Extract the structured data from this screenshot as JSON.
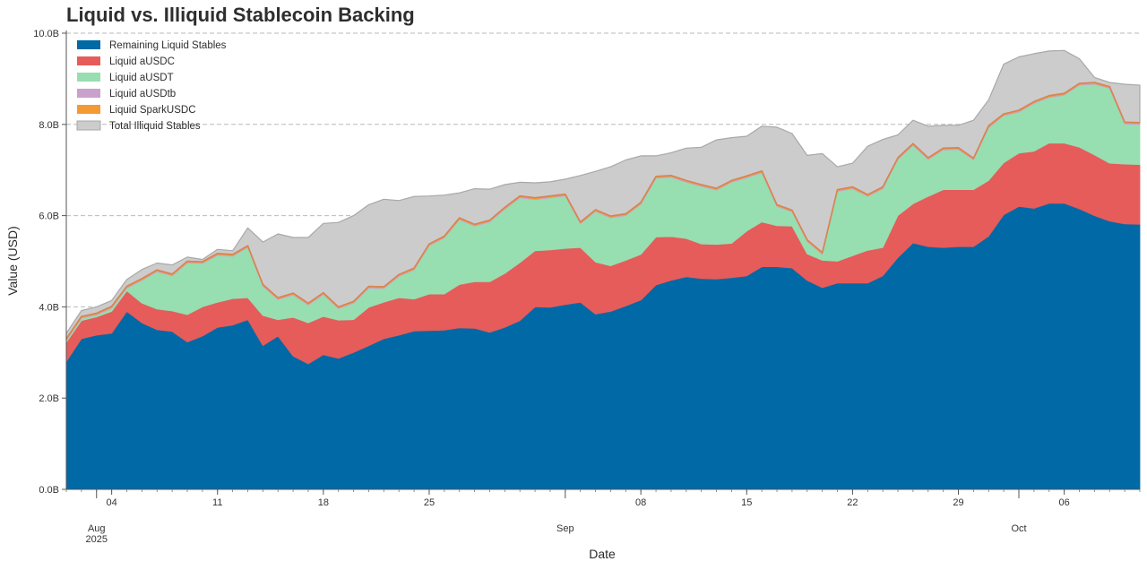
{
  "chart_data": {
    "type": "area",
    "stacked": true,
    "title": "Liquid vs. Illiquid Stablecoin Backing",
    "xlabel": "Date",
    "ylabel": "Value (USD)",
    "ylim": [
      0,
      10
    ],
    "y_unit": "B",
    "y_ticks": [
      "0.0B",
      "2.0B",
      "4.0B",
      "6.0B",
      "8.0B",
      "10.0B"
    ],
    "x_ticks": [
      {
        "day": 3,
        "label": "04"
      },
      {
        "day": 10,
        "label": "11"
      },
      {
        "day": 17,
        "label": "18"
      },
      {
        "day": 24,
        "label": "25"
      },
      {
        "day": 38,
        "label": "08"
      },
      {
        "day": 45,
        "label": "15"
      },
      {
        "day": 52,
        "label": "22"
      },
      {
        "day": 59,
        "label": "29"
      },
      {
        "day": 66,
        "label": "06"
      }
    ],
    "month_labels": [
      {
        "day": 2,
        "label": "Aug",
        "sub": "2025"
      },
      {
        "day": 33,
        "label": "Sep",
        "sub": ""
      },
      {
        "day": 63,
        "label": "Oct",
        "sub": ""
      }
    ],
    "grid": "y-dashed",
    "legend_position": "top-left",
    "x_start": "2025-08-01",
    "x_end": "2025-10-09",
    "series": [
      {
        "name": "Remaining Liquid Stables",
        "color": "#0069a6",
        "values": [
          2.8,
          3.3,
          3.38,
          3.42,
          3.9,
          3.65,
          3.5,
          3.46,
          3.23,
          3.36,
          3.55,
          3.6,
          3.72,
          3.15,
          3.36,
          2.92,
          2.75,
          2.95,
          2.87,
          3.0,
          3.15,
          3.3,
          3.38,
          3.47,
          3.48,
          3.49,
          3.54,
          3.53,
          3.44,
          3.55,
          3.7,
          4.0,
          3.99,
          4.05,
          4.1,
          3.84,
          3.9,
          4.02,
          4.15,
          4.48,
          4.58,
          4.66,
          4.62,
          4.61,
          4.64,
          4.68,
          4.88,
          4.88,
          4.85,
          4.58,
          4.42,
          4.52,
          4.52,
          4.52,
          4.68,
          5.08,
          5.4,
          5.32,
          5.3,
          5.32,
          5.32,
          5.55,
          6.02,
          6.2,
          6.16,
          6.27,
          6.27,
          6.15,
          6.0,
          5.88,
          5.82,
          5.81
        ]
      },
      {
        "name": "Liquid aUSDC",
        "color": "#e55c5a",
        "values": [
          0.42,
          0.4,
          0.4,
          0.48,
          0.45,
          0.43,
          0.45,
          0.45,
          0.6,
          0.64,
          0.55,
          0.58,
          0.48,
          0.66,
          0.36,
          0.85,
          0.9,
          0.84,
          0.84,
          0.72,
          0.84,
          0.8,
          0.82,
          0.7,
          0.8,
          0.79,
          0.95,
          1.02,
          1.11,
          1.18,
          1.27,
          1.23,
          1.26,
          1.23,
          1.2,
          1.14,
          1.0,
          1.0,
          1.0,
          1.05,
          0.96,
          0.84,
          0.76,
          0.76,
          0.75,
          0.98,
          0.98,
          0.9,
          0.92,
          0.58,
          0.6,
          0.48,
          0.6,
          0.72,
          0.62,
          0.92,
          0.86,
          1.1,
          1.27,
          1.25,
          1.25,
          1.22,
          1.14,
          1.17,
          1.25,
          1.32,
          1.32,
          1.35,
          1.33,
          1.27,
          1.31,
          1.31
        ]
      },
      {
        "name": "Liquid aUSDT",
        "color": "#97deb0",
        "values": [
          0.04,
          0.05,
          0.04,
          0.07,
          0.06,
          0.5,
          0.82,
          0.77,
          1.13,
          0.95,
          1.03,
          0.93,
          1.1,
          0.64,
          0.44,
          0.49,
          0.39,
          0.48,
          0.25,
          0.36,
          0.42,
          0.3,
          0.47,
          0.64,
          1.06,
          1.23,
          1.42,
          1.22,
          1.31,
          1.41,
          1.42,
          1.12,
          1.14,
          1.15,
          0.52,
          1.11,
          1.05,
          0.98,
          1.1,
          1.29,
          1.3,
          1.23,
          1.26,
          1.19,
          1.34,
          1.17,
          1.08,
          0.42,
          0.31,
          0.27,
          0.13,
          1.53,
          1.47,
          1.18,
          1.29,
          1.23,
          1.28,
          0.81,
          0.87,
          0.88,
          0.65,
          1.16,
          1.03,
          0.9,
          1.05,
          1.0,
          1.05,
          1.36,
          1.55,
          1.64,
          0.88,
          0.88
        ]
      },
      {
        "name": "Liquid aUSDtb",
        "color": "#caa0cc",
        "values": [
          0.02,
          0.02,
          0.02,
          0.02,
          0.02,
          0.02,
          0.02,
          0.02,
          0.02,
          0.02,
          0.02,
          0.02,
          0.02,
          0.02,
          0.02,
          0.02,
          0.02,
          0.02,
          0.02,
          0.02,
          0.02,
          0.02,
          0.02,
          0.02,
          0.02,
          0.02,
          0.02,
          0.02,
          0.02,
          0.02,
          0.02,
          0.02,
          0.02,
          0.02,
          0.02,
          0.02,
          0.02,
          0.02,
          0.02,
          0.02,
          0.02,
          0.02,
          0.02,
          0.02,
          0.02,
          0.02,
          0.02,
          0.02,
          0.02,
          0.02,
          0.02,
          0.02,
          0.02,
          0.02,
          0.02,
          0.02,
          0.02,
          0.02,
          0.02,
          0.02,
          0.02,
          0.02,
          0.02,
          0.02,
          0.02,
          0.02,
          0.02,
          0.02,
          0.02,
          0.02,
          0.02,
          0.02
        ]
      },
      {
        "name": "Liquid SparkUSDC",
        "color": "#f59a32",
        "values": [
          0.02,
          0.02,
          0.02,
          0.02,
          0.02,
          0.02,
          0.02,
          0.02,
          0.02,
          0.02,
          0.02,
          0.02,
          0.02,
          0.02,
          0.02,
          0.02,
          0.02,
          0.02,
          0.02,
          0.02,
          0.02,
          0.02,
          0.02,
          0.02,
          0.02,
          0.02,
          0.02,
          0.02,
          0.02,
          0.02,
          0.02,
          0.02,
          0.02,
          0.02,
          0.02,
          0.02,
          0.02,
          0.02,
          0.02,
          0.02,
          0.02,
          0.02,
          0.02,
          0.02,
          0.02,
          0.02,
          0.02,
          0.02,
          0.02,
          0.02,
          0.02,
          0.02,
          0.02,
          0.02,
          0.02,
          0.02,
          0.02,
          0.02,
          0.02,
          0.02,
          0.02,
          0.02,
          0.02,
          0.02,
          0.02,
          0.02,
          0.02,
          0.02,
          0.02,
          0.02,
          0.02,
          0.02
        ]
      },
      {
        "name": "Total Illiquid Stables",
        "color": "#cccccc",
        "values": [
          0.12,
          0.13,
          0.14,
          0.13,
          0.15,
          0.2,
          0.15,
          0.2,
          0.09,
          0.05,
          0.09,
          0.08,
          0.39,
          0.93,
          1.4,
          1.22,
          1.44,
          1.52,
          1.85,
          1.88,
          1.79,
          1.92,
          1.62,
          1.57,
          1.05,
          0.9,
          0.55,
          0.78,
          0.68,
          0.5,
          0.3,
          0.33,
          0.31,
          0.33,
          1.02,
          0.84,
          1.08,
          1.18,
          1.02,
          0.45,
          0.5,
          0.71,
          0.82,
          1.06,
          0.94,
          0.87,
          0.98,
          1.7,
          1.68,
          1.85,
          2.17,
          0.5,
          0.52,
          1.06,
          1.04,
          0.5,
          0.51,
          0.69,
          0.5,
          0.49,
          0.83,
          0.57,
          1.09,
          1.17,
          1.05,
          0.98,
          0.94,
          0.54,
          0.11,
          0.09,
          0.83,
          0.82
        ]
      }
    ]
  }
}
